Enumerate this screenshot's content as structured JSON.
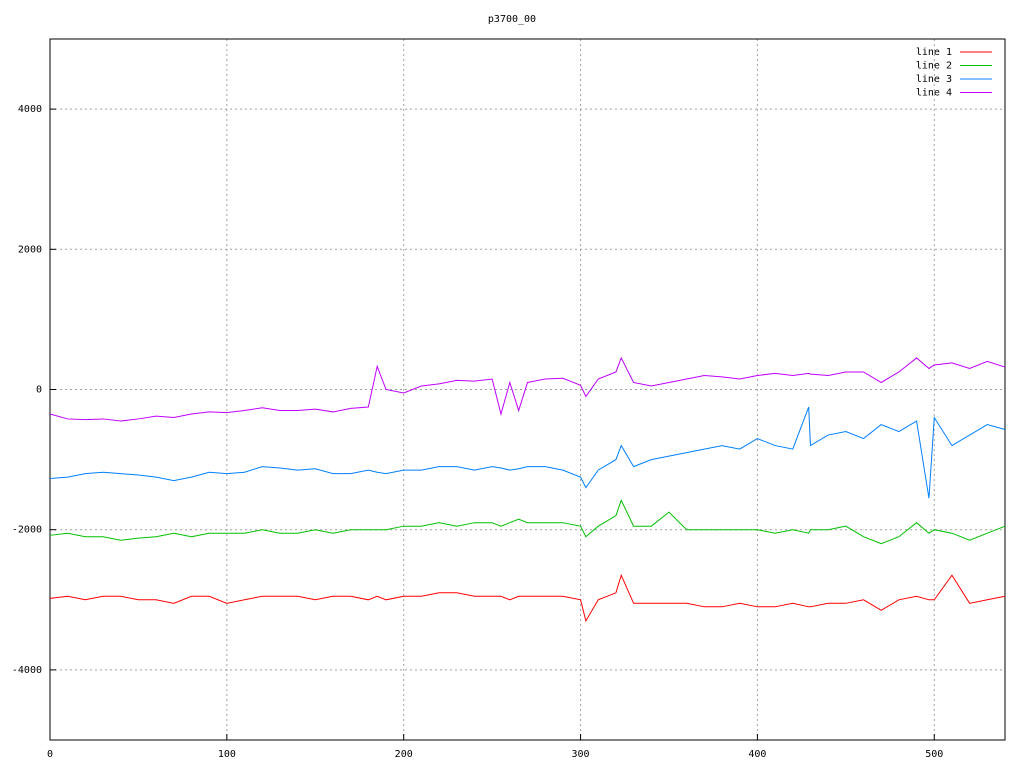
{
  "chart_data": {
    "type": "line",
    "title": "p3700_00",
    "x": [
      0,
      10,
      20,
      30,
      40,
      50,
      60,
      70,
      80,
      90,
      100,
      110,
      120,
      130,
      140,
      150,
      160,
      170,
      180,
      185,
      190,
      200,
      210,
      220,
      230,
      240,
      250,
      255,
      260,
      265,
      270,
      280,
      290,
      300,
      303,
      310,
      320,
      323,
      330,
      340,
      350,
      360,
      370,
      380,
      390,
      400,
      410,
      420,
      429,
      430,
      440,
      450,
      460,
      470,
      480,
      490,
      497,
      500,
      510,
      520,
      530,
      540
    ],
    "series": [
      {
        "name": "line 1",
        "color": "#ff0000",
        "values": [
          -2980,
          -2950,
          -3000,
          -2950,
          -2950,
          -3000,
          -3000,
          -3050,
          -2950,
          -2950,
          -3050,
          -3000,
          -2950,
          -2950,
          -2950,
          -3000,
          -2950,
          -2950,
          -3000,
          -2950,
          -3000,
          -2950,
          -2950,
          -2900,
          -2900,
          -2950,
          -2950,
          -2950,
          -3000,
          -2950,
          -2950,
          -2950,
          -2950,
          -3000,
          -3300,
          -3000,
          -2900,
          -2650,
          -3050,
          -3050,
          -3050,
          -3050,
          -3100,
          -3100,
          -3050,
          -3100,
          -3100,
          -3050,
          -3100,
          -3100,
          -3050,
          -3050,
          -3000,
          -3150,
          -3000,
          -2950,
          -3000,
          -3000,
          -2650,
          -3050,
          -3000,
          -2950
        ]
      },
      {
        "name": "line 2",
        "color": "#00c000",
        "values": [
          -2080,
          -2050,
          -2100,
          -2100,
          -2150,
          -2120,
          -2100,
          -2050,
          -2100,
          -2050,
          -2050,
          -2050,
          -2000,
          -2050,
          -2050,
          -2000,
          -2050,
          -2000,
          -2000,
          -2000,
          -2000,
          -1950,
          -1950,
          -1900,
          -1950,
          -1900,
          -1900,
          -1950,
          -1900,
          -1850,
          -1900,
          -1900,
          -1900,
          -1950,
          -2100,
          -1950,
          -1800,
          -1580,
          -1950,
          -1950,
          -1750,
          -2000,
          -2000,
          -2000,
          -2000,
          -2000,
          -2050,
          -2000,
          -2050,
          -2000,
          -2000,
          -1950,
          -2100,
          -2200,
          -2100,
          -1900,
          -2050,
          -2000,
          -2050,
          -2150,
          -2050,
          -1950
        ]
      },
      {
        "name": "line 3",
        "color": "#0080ff",
        "values": [
          -1270,
          -1250,
          -1200,
          -1180,
          -1200,
          -1220,
          -1250,
          -1300,
          -1250,
          -1180,
          -1200,
          -1180,
          -1100,
          -1120,
          -1150,
          -1130,
          -1200,
          -1200,
          -1150,
          -1180,
          -1200,
          -1150,
          -1150,
          -1100,
          -1100,
          -1150,
          -1100,
          -1120,
          -1150,
          -1130,
          -1100,
          -1100,
          -1150,
          -1250,
          -1400,
          -1150,
          -1000,
          -800,
          -1100,
          -1000,
          -950,
          -900,
          -850,
          -800,
          -850,
          -700,
          -800,
          -850,
          -250,
          -800,
          -650,
          -600,
          -700,
          -500,
          -600,
          -450,
          -1550,
          -400,
          -800,
          -650,
          -500,
          -570
        ]
      },
      {
        "name": "line 4",
        "color": "#c000ff",
        "values": [
          -350,
          -420,
          -430,
          -420,
          -450,
          -420,
          -380,
          -400,
          -350,
          -320,
          -330,
          -300,
          -260,
          -300,
          -300,
          -280,
          -320,
          -270,
          -250,
          330,
          0,
          -50,
          50,
          80,
          130,
          120,
          150,
          -350,
          100,
          -300,
          100,
          150,
          160,
          60,
          -100,
          150,
          250,
          450,
          100,
          50,
          100,
          150,
          200,
          180,
          150,
          200,
          230,
          200,
          230,
          220,
          200,
          250,
          250,
          100,
          250,
          450,
          300,
          350,
          380,
          300,
          400,
          320
        ]
      }
    ],
    "xlim": [
      0,
      540
    ],
    "ylim": [
      -5000,
      5000
    ],
    "xticks": [
      0,
      100,
      200,
      300,
      400,
      500
    ],
    "yticks": [
      -4000,
      -2000,
      0,
      2000,
      4000
    ],
    "grid": true,
    "legend": "top-right"
  }
}
